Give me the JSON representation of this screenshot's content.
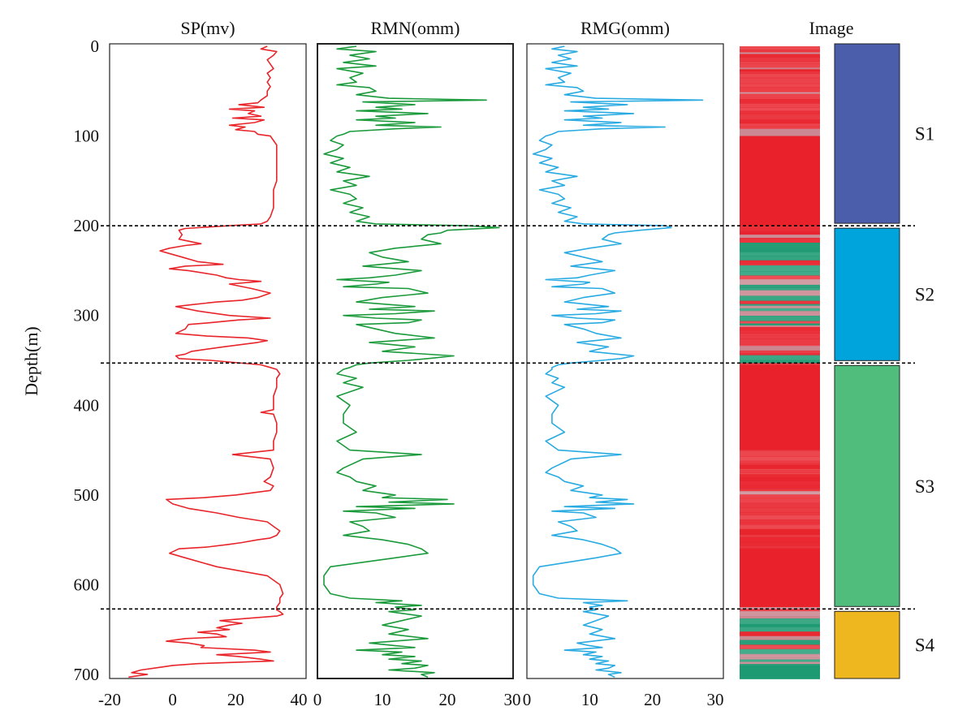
{
  "chart_data": {
    "type": "line",
    "orientation": "well-log",
    "y_axis": {
      "label": "Depth(m)",
      "range": [
        0,
        700
      ],
      "ticks": [
        0,
        100,
        200,
        300,
        400,
        500,
        600,
        700
      ],
      "inverted": true
    },
    "tracks": [
      {
        "id": "sp",
        "title": "SP(mv)",
        "color": "#e8252a",
        "xlim": [
          -20,
          40
        ],
        "ticks": [
          -20,
          0,
          20,
          40
        ],
        "depth": [
          0,
          3,
          6,
          10,
          15,
          20,
          25,
          30,
          35,
          40,
          45,
          50,
          55,
          60,
          63,
          65,
          68,
          70,
          72,
          75,
          78,
          80,
          82,
          85,
          88,
          90,
          93,
          95,
          98,
          100,
          105,
          110,
          120,
          130,
          140,
          150,
          160,
          170,
          180,
          190,
          195,
          198,
          200,
          203,
          205,
          210,
          215,
          220,
          222,
          225,
          228,
          230,
          235,
          240,
          243,
          245,
          248,
          250,
          255,
          258,
          260,
          262,
          265,
          270,
          275,
          280,
          283,
          285,
          288,
          290,
          295,
          300,
          303,
          305,
          308,
          310,
          315,
          320,
          323,
          325,
          328,
          330,
          335,
          340,
          343,
          345,
          348,
          350,
          355,
          358,
          360,
          365,
          370,
          380,
          390,
          400,
          405,
          408,
          410,
          420,
          430,
          440,
          450,
          455,
          460,
          470,
          480,
          485,
          490,
          495,
          500,
          503,
          505,
          510,
          515,
          520,
          525,
          530,
          535,
          540,
          545,
          548,
          550,
          553,
          555,
          558,
          560,
          565,
          570,
          580,
          590,
          600,
          610,
          615,
          620,
          625,
          628,
          630,
          633,
          635,
          638,
          640,
          643,
          645,
          648,
          650,
          653,
          655,
          658,
          660,
          663,
          665,
          668,
          670,
          673,
          675,
          678,
          680,
          683,
          685,
          688,
          690,
          693,
          695,
          698,
          700,
          703
        ],
        "value": [
          30,
          28,
          33,
          32,
          30,
          31,
          32,
          30,
          31,
          30,
          31,
          30,
          30,
          28,
          27,
          21,
          29,
          18,
          26,
          24,
          28,
          19,
          29,
          26,
          18,
          23,
          20,
          26,
          27,
          31,
          32,
          33,
          33,
          33,
          33,
          33,
          32,
          32,
          32,
          31,
          30,
          28,
          18,
          4,
          2,
          3,
          2,
          9,
          4,
          -1,
          -4,
          -2,
          3,
          8,
          16,
          4,
          -1,
          5,
          14,
          17,
          21,
          28,
          18,
          25,
          31,
          27,
          22,
          14,
          6,
          1,
          8,
          18,
          31,
          21,
          12,
          5,
          4,
          1,
          11,
          24,
          30,
          27,
          16,
          6,
          4,
          1,
          2,
          12,
          28,
          31,
          33,
          34,
          33,
          33,
          32,
          32,
          32,
          28,
          32,
          33,
          33,
          32,
          32,
          19,
          31,
          32,
          31,
          29,
          32,
          31,
          20,
          10,
          -2,
          0,
          5,
          14,
          21,
          30,
          32,
          34,
          33,
          31,
          27,
          22,
          18,
          11,
          2,
          -1,
          4,
          14,
          30,
          34,
          35,
          34,
          34,
          33,
          33,
          34,
          35,
          33,
          22,
          15,
          22,
          18,
          14,
          18,
          8,
          14,
          17,
          4,
          -2,
          5,
          10,
          9,
          26,
          31,
          14,
          21,
          28,
          32,
          8,
          0,
          -6,
          -10,
          -13,
          -8,
          -14,
          -16,
          -20
        ]
      },
      {
        "id": "rmn",
        "title": "RMN(omm)",
        "color": "#1a9a3b",
        "xlim": [
          0,
          30
        ],
        "ticks": [
          0,
          10,
          20,
          30
        ],
        "depth": [
          0,
          3,
          6,
          10,
          14,
          18,
          22,
          25,
          30,
          35,
          40,
          43,
          46,
          50,
          54,
          58,
          60,
          62,
          65,
          68,
          70,
          72,
          75,
          78,
          80,
          82,
          85,
          88,
          90,
          92,
          95,
          98,
          100,
          105,
          110,
          115,
          120,
          125,
          130,
          135,
          140,
          145,
          150,
          155,
          160,
          165,
          170,
          175,
          180,
          185,
          190,
          195,
          198,
          200,
          202,
          205,
          208,
          210,
          215,
          220,
          225,
          230,
          235,
          240,
          245,
          250,
          255,
          258,
          260,
          263,
          265,
          268,
          270,
          275,
          280,
          285,
          290,
          293,
          295,
          298,
          300,
          303,
          305,
          308,
          310,
          315,
          320,
          325,
          330,
          335,
          340,
          345,
          348,
          350,
          353,
          355,
          358,
          360,
          365,
          370,
          375,
          380,
          390,
          400,
          410,
          420,
          430,
          440,
          445,
          450,
          455,
          460,
          470,
          475,
          480,
          485,
          490,
          495,
          500,
          503,
          505,
          508,
          510,
          513,
          515,
          518,
          520,
          525,
          530,
          535,
          540,
          545,
          550,
          555,
          560,
          565,
          570,
          580,
          590,
          600,
          610,
          615,
          618,
          620,
          623,
          625,
          628,
          630,
          635,
          640,
          645,
          650,
          655,
          660,
          665,
          668,
          670,
          673,
          675,
          678,
          680,
          683,
          685,
          688,
          690,
          693,
          695,
          698,
          700,
          703
        ],
        "value": [
          6,
          3,
          9,
          5,
          8,
          4,
          9,
          3,
          7,
          5,
          6,
          3,
          8,
          9,
          6,
          11,
          26,
          7,
          15,
          9,
          13,
          6,
          17,
          9,
          12,
          6,
          15,
          9,
          19,
          12,
          5,
          4,
          3,
          2,
          4,
          3,
          1,
          4,
          2,
          5,
          3,
          8,
          4,
          6,
          2,
          5,
          6,
          4,
          7,
          5,
          8,
          6,
          9,
          23,
          28,
          20,
          19,
          17,
          16,
          19,
          12,
          8,
          10,
          14,
          7,
          16,
          12,
          8,
          3,
          11,
          9,
          4,
          14,
          17,
          10,
          6,
          15,
          8,
          18,
          12,
          4,
          9,
          16,
          14,
          6,
          9,
          12,
          18,
          8,
          15,
          10,
          21,
          17,
          14,
          8,
          6,
          5,
          4,
          3,
          6,
          4,
          7,
          3,
          5,
          4,
          4,
          6,
          3,
          4,
          5,
          16,
          7,
          4,
          3,
          5,
          6,
          9,
          7,
          12,
          10,
          20,
          11,
          21,
          6,
          15,
          4,
          9,
          12,
          5,
          7,
          8,
          4,
          10,
          14,
          16,
          17,
          12,
          2,
          1,
          1,
          2,
          5,
          13,
          9,
          16,
          12,
          15,
          11,
          16,
          13,
          10,
          14,
          11,
          17,
          8,
          12,
          15,
          6,
          13,
          10,
          15,
          11,
          16,
          13,
          17,
          15,
          11,
          18,
          16,
          17
        ]
      },
      {
        "id": "rmg",
        "title": "RMG(omm)",
        "color": "#29abe2",
        "xlim": [
          0,
          30
        ],
        "ticks": [
          0,
          10,
          20,
          30
        ],
        "depth": [
          0,
          3,
          6,
          10,
          14,
          18,
          22,
          25,
          30,
          35,
          40,
          43,
          46,
          50,
          54,
          58,
          60,
          62,
          65,
          68,
          70,
          72,
          75,
          78,
          80,
          82,
          85,
          88,
          90,
          92,
          95,
          98,
          100,
          105,
          110,
          115,
          120,
          125,
          130,
          135,
          140,
          145,
          150,
          155,
          160,
          165,
          170,
          175,
          180,
          185,
          190,
          195,
          198,
          200,
          202,
          205,
          208,
          210,
          215,
          220,
          225,
          230,
          235,
          240,
          245,
          250,
          255,
          258,
          260,
          263,
          265,
          268,
          270,
          275,
          280,
          285,
          290,
          293,
          295,
          298,
          300,
          303,
          305,
          308,
          310,
          315,
          320,
          325,
          330,
          335,
          340,
          345,
          348,
          350,
          353,
          355,
          358,
          360,
          365,
          370,
          375,
          380,
          390,
          400,
          410,
          420,
          430,
          440,
          445,
          450,
          455,
          460,
          470,
          475,
          480,
          485,
          490,
          495,
          500,
          503,
          505,
          508,
          510,
          513,
          515,
          518,
          520,
          525,
          530,
          535,
          540,
          545,
          550,
          555,
          560,
          565,
          570,
          580,
          590,
          600,
          610,
          615,
          618,
          620,
          623,
          625,
          628,
          630,
          635,
          640,
          645,
          650,
          655,
          660,
          665,
          668,
          670,
          673,
          675,
          678,
          680,
          683,
          685,
          688,
          690,
          693,
          695,
          698,
          700,
          703
        ],
        "value": [
          6,
          4,
          8,
          5,
          7,
          4,
          8,
          3,
          7,
          5,
          6,
          3,
          8,
          9,
          6,
          11,
          28,
          7,
          16,
          9,
          13,
          6,
          17,
          9,
          12,
          6,
          15,
          9,
          22,
          12,
          5,
          4,
          3,
          2,
          4,
          3,
          1,
          4,
          2,
          5,
          3,
          8,
          4,
          6,
          2,
          5,
          6,
          4,
          7,
          5,
          8,
          6,
          9,
          22,
          23,
          18,
          14,
          13,
          12,
          15,
          10,
          6,
          9,
          12,
          7,
          14,
          10,
          8,
          3,
          10,
          9,
          4,
          12,
          14,
          9,
          6,
          13,
          8,
          15,
          11,
          4,
          8,
          14,
          12,
          6,
          9,
          11,
          15,
          8,
          13,
          10,
          17,
          15,
          12,
          7,
          5,
          4,
          4,
          3,
          5,
          4,
          6,
          3,
          5,
          4,
          4,
          6,
          3,
          4,
          5,
          15,
          7,
          4,
          3,
          5,
          6,
          9,
          7,
          12,
          10,
          16,
          11,
          17,
          6,
          14,
          4,
          9,
          11,
          5,
          7,
          8,
          4,
          9,
          12,
          14,
          15,
          11,
          2,
          1,
          1,
          2,
          5,
          16,
          9,
          12,
          10,
          11,
          9,
          13,
          11,
          9,
          12,
          10,
          14,
          8,
          10,
          12,
          6,
          11,
          9,
          12,
          10,
          13,
          11,
          14,
          13,
          11,
          15,
          13,
          14
        ]
      }
    ],
    "image_track": {
      "title": "Image",
      "colors": {
        "red": "#e8212b",
        "green": "#1d9a72",
        "pink": "#c9868f"
      }
    },
    "segments": [
      {
        "label": "S1",
        "top": 0,
        "bottom": 200,
        "color": "#4a5eac"
      },
      {
        "label": "S2",
        "top": 200,
        "bottom": 353,
        "color": "#00a4dc"
      },
      {
        "label": "S3",
        "top": 353,
        "bottom": 627,
        "color": "#50bd7c"
      },
      {
        "label": "S4",
        "top": 627,
        "bottom": 705,
        "color": "#efb71f"
      }
    ],
    "boundaries": [
      200,
      353,
      627
    ]
  }
}
